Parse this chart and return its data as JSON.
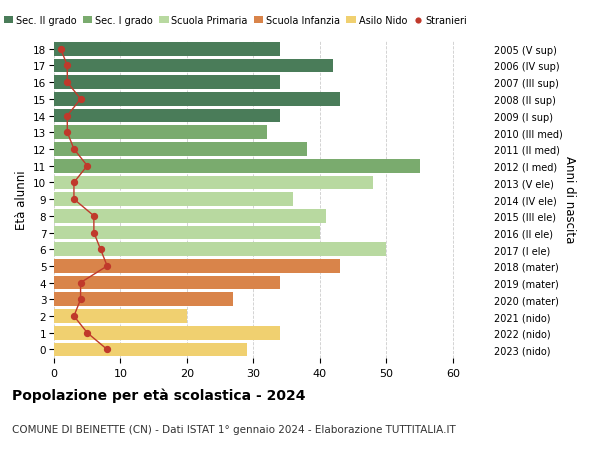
{
  "ages": [
    18,
    17,
    16,
    15,
    14,
    13,
    12,
    11,
    10,
    9,
    8,
    7,
    6,
    5,
    4,
    3,
    2,
    1,
    0
  ],
  "years": [
    "2005 (V sup)",
    "2006 (IV sup)",
    "2007 (III sup)",
    "2008 (II sup)",
    "2009 (I sup)",
    "2010 (III med)",
    "2011 (II med)",
    "2012 (I med)",
    "2013 (V ele)",
    "2014 (IV ele)",
    "2015 (III ele)",
    "2016 (II ele)",
    "2017 (I ele)",
    "2018 (mater)",
    "2019 (mater)",
    "2020 (mater)",
    "2021 (nido)",
    "2022 (nido)",
    "2023 (nido)"
  ],
  "bar_values": [
    34,
    42,
    34,
    43,
    34,
    32,
    38,
    55,
    48,
    36,
    41,
    40,
    50,
    43,
    34,
    27,
    20,
    34,
    29
  ],
  "stranieri_values": [
    1,
    2,
    2,
    4,
    2,
    2,
    3,
    5,
    3,
    3,
    6,
    6,
    7,
    8,
    4,
    4,
    3,
    5,
    8
  ],
  "bar_colors": [
    "#4a7c59",
    "#4a7c59",
    "#4a7c59",
    "#4a7c59",
    "#4a7c59",
    "#7aab6e",
    "#7aab6e",
    "#7aab6e",
    "#b8d9a0",
    "#b8d9a0",
    "#b8d9a0",
    "#b8d9a0",
    "#b8d9a0",
    "#d9844a",
    "#d9844a",
    "#d9844a",
    "#f0d070",
    "#f0d070",
    "#f0d070"
  ],
  "legend_labels": [
    "Sec. II grado",
    "Sec. I grado",
    "Scuola Primaria",
    "Scuola Infanzia",
    "Asilo Nido",
    "Stranieri"
  ],
  "legend_colors": [
    "#4a7c59",
    "#7aab6e",
    "#b8d9a0",
    "#d9844a",
    "#f0d070",
    "#c0392b"
  ],
  "stranieri_color": "#c0392b",
  "stranieri_line_color": "#c0392b",
  "ylabel_left": "Età alunni",
  "ylabel_right": "Anni di nascita",
  "title": "Popolazione per età scolastica - 2024",
  "subtitle": "COMUNE DI BEINETTE (CN) - Dati ISTAT 1° gennaio 2024 - Elaborazione TUTTITALIA.IT",
  "xlim": [
    0,
    65
  ],
  "xticks": [
    0,
    10,
    20,
    30,
    40,
    50,
    60
  ],
  "background_color": "#ffffff",
  "grid_color": "#cccccc"
}
